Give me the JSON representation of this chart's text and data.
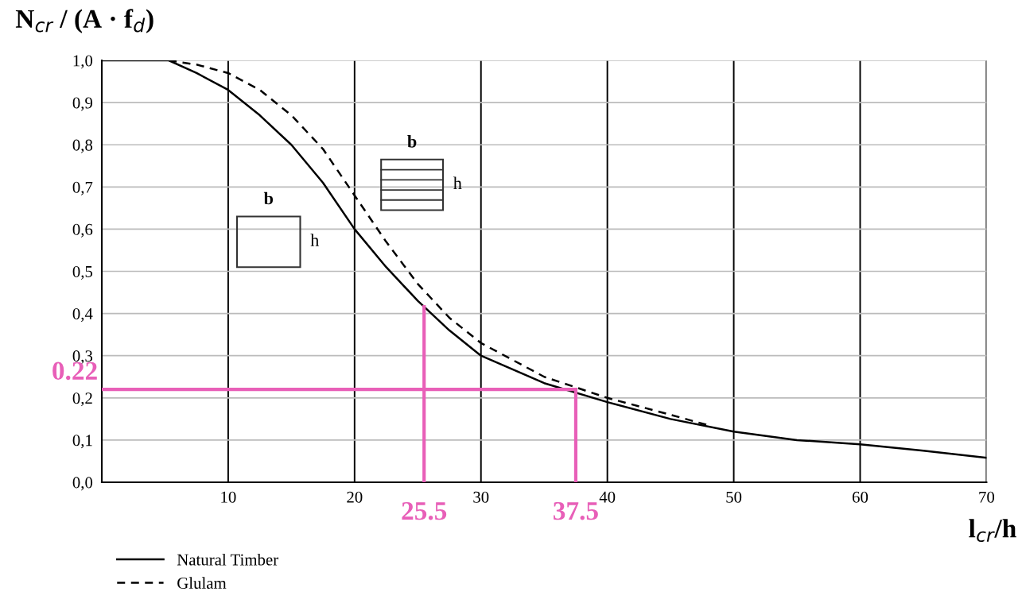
{
  "chart_data": {
    "type": "line",
    "ylabel": "N$_{cr}$ / (A · f$_{d}$)",
    "xlabel": "l$_{cr}$/h",
    "series": [
      {
        "name": "Natural Timber",
        "color": "#000000",
        "line_style": "solid",
        "x": [
          0,
          5.3,
          7.5,
          10,
          12.5,
          15,
          17.5,
          20,
          22.5,
          25,
          27.5,
          30,
          35,
          40,
          45,
          50,
          55,
          60,
          65,
          70
        ],
        "values": [
          1.0,
          1.0,
          0.97,
          0.93,
          0.87,
          0.8,
          0.71,
          0.6,
          0.51,
          0.43,
          0.36,
          0.3,
          0.235,
          0.19,
          0.15,
          0.12,
          0.1,
          0.09,
          0.075,
          0.058
        ]
      },
      {
        "name": "Glulam",
        "color": "#000000",
        "line_style": "dashed",
        "x": [
          5.3,
          7.5,
          10,
          12.5,
          15,
          17.5,
          20,
          22.5,
          25,
          27.5,
          30,
          35,
          40,
          45,
          48
        ],
        "values": [
          1.0,
          0.99,
          0.97,
          0.93,
          0.87,
          0.79,
          0.68,
          0.57,
          0.47,
          0.39,
          0.33,
          0.25,
          0.2,
          0.16,
          0.135
        ]
      }
    ],
    "xlim": [
      0,
      70
    ],
    "xticks": [
      10,
      20,
      30,
      40,
      50,
      60,
      70
    ],
    "ylim": [
      0,
      1
    ],
    "yticks": [
      {
        "value": 0,
        "label": "0,0"
      },
      {
        "value": 0.1,
        "label": "0,1"
      },
      {
        "value": 0.2,
        "label": "0,2"
      },
      {
        "value": 0.3,
        "label": "0,3"
      },
      {
        "value": 0.4,
        "label": "0,4"
      },
      {
        "value": 0.5,
        "label": "0,5"
      },
      {
        "value": 0.6,
        "label": "0,6"
      },
      {
        "value": 0.7,
        "label": "0,7"
      },
      {
        "value": 0.8,
        "label": "0,8"
      },
      {
        "value": 0.9,
        "label": "0,9"
      },
      {
        "value": 1.0,
        "label": "1,0"
      }
    ],
    "ref_lines": [
      {
        "axis": "y",
        "value": 0.22,
        "label": "0.22",
        "color": "#e85fb8"
      },
      {
        "axis": "x",
        "value": 25.5,
        "label": "25.5",
        "color": "#e85fb8"
      },
      {
        "axis": "x",
        "value": 37.5,
        "label": "37.5",
        "color": "#e85fb8"
      }
    ],
    "annotations": [
      "b",
      "h",
      "b",
      "h"
    ],
    "grid": true,
    "legend": "bottom left",
    "marker": "none"
  }
}
